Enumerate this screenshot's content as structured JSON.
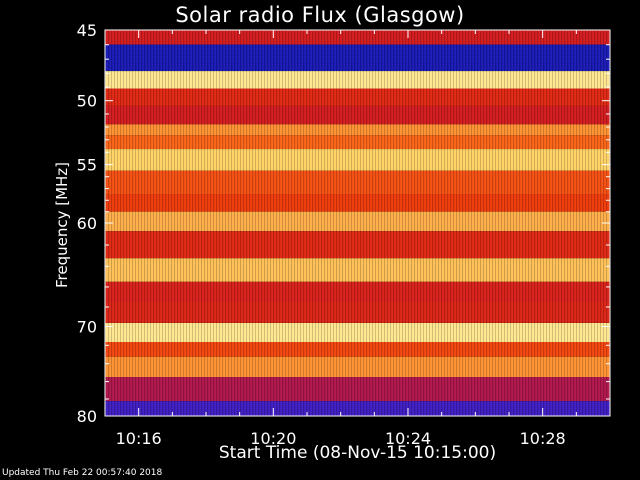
{
  "footer_text": "Updated Thu Feb 22 00:57:40 2018",
  "colors": {
    "background": "#000000",
    "axes": "#ffffff"
  },
  "chart_data": {
    "type": "heatmap",
    "title": "Solar radio Flux (Glasgow)",
    "xlabel": "Start Time (08-Nov-15 10:15:00)",
    "ylabel": "Frequency [MHz]",
    "x_ticks": [
      "10:16",
      "10:20",
      "10:24",
      "10:28"
    ],
    "x_tick_minutes": [
      1,
      5,
      9,
      13
    ],
    "xlim_minutes": [
      0,
      15
    ],
    "y_ticks": [
      "45",
      "50",
      "55",
      "60",
      "70",
      "80"
    ],
    "y_tick_values": [
      45,
      50,
      55,
      60,
      70,
      80
    ],
    "ylim": [
      45,
      80
    ],
    "yscale": "log",
    "y_inverted": true,
    "colormap": "blue-red-yellow",
    "bands": [
      {
        "mhz": 45.0,
        "intensity": 0.55
      },
      {
        "mhz": 47.0,
        "intensity": 0.12
      },
      {
        "mhz": 48.7,
        "intensity": 0.95
      },
      {
        "mhz": 49.5,
        "intensity": 0.62
      },
      {
        "mhz": 51.3,
        "intensity": 0.55
      },
      {
        "mhz": 52.3,
        "intensity": 0.85
      },
      {
        "mhz": 53.0,
        "intensity": 0.78
      },
      {
        "mhz": 54.5,
        "intensity": 0.92
      },
      {
        "mhz": 56.5,
        "intensity": 0.74
      },
      {
        "mhz": 58.5,
        "intensity": 0.7
      },
      {
        "mhz": 59.5,
        "intensity": 0.88
      },
      {
        "mhz": 62.0,
        "intensity": 0.62
      },
      {
        "mhz": 64.5,
        "intensity": 0.9
      },
      {
        "mhz": 66.5,
        "intensity": 0.58
      },
      {
        "mhz": 68.5,
        "intensity": 0.6
      },
      {
        "mhz": 70.8,
        "intensity": 0.95
      },
      {
        "mhz": 72.5,
        "intensity": 0.72
      },
      {
        "mhz": 74.0,
        "intensity": 0.85
      },
      {
        "mhz": 77.0,
        "intensity": 0.45
      },
      {
        "mhz": 79.5,
        "intensity": 0.22
      }
    ]
  }
}
